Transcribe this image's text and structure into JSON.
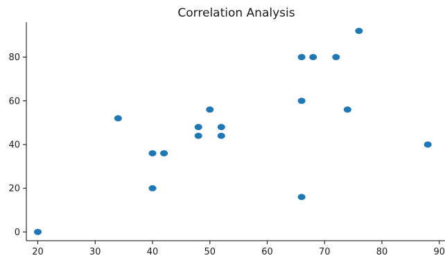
{
  "chart_data": {
    "type": "scatter",
    "title": "Correlation Analysis",
    "xlabel": "",
    "ylabel": "",
    "xlim": [
      18,
      91
    ],
    "ylim": [
      -4,
      96
    ],
    "x_ticks": [
      20,
      30,
      40,
      50,
      60,
      70,
      80,
      90
    ],
    "y_ticks": [
      0,
      20,
      40,
      60,
      80
    ],
    "grid": false,
    "marker_color": "#1f77b4",
    "series": [
      {
        "points": [
          {
            "x": 20,
            "y": 0
          },
          {
            "x": 34,
            "y": 52
          },
          {
            "x": 40,
            "y": 36
          },
          {
            "x": 42,
            "y": 36
          },
          {
            "x": 40,
            "y": 20
          },
          {
            "x": 48,
            "y": 48
          },
          {
            "x": 48,
            "y": 44
          },
          {
            "x": 50,
            "y": 56
          },
          {
            "x": 52,
            "y": 48
          },
          {
            "x": 52,
            "y": 44
          },
          {
            "x": 66,
            "y": 80
          },
          {
            "x": 68,
            "y": 80
          },
          {
            "x": 72,
            "y": 80
          },
          {
            "x": 76,
            "y": 92
          },
          {
            "x": 66,
            "y": 60
          },
          {
            "x": 74,
            "y": 56
          },
          {
            "x": 66,
            "y": 16
          },
          {
            "x": 88,
            "y": 40
          }
        ]
      }
    ]
  }
}
